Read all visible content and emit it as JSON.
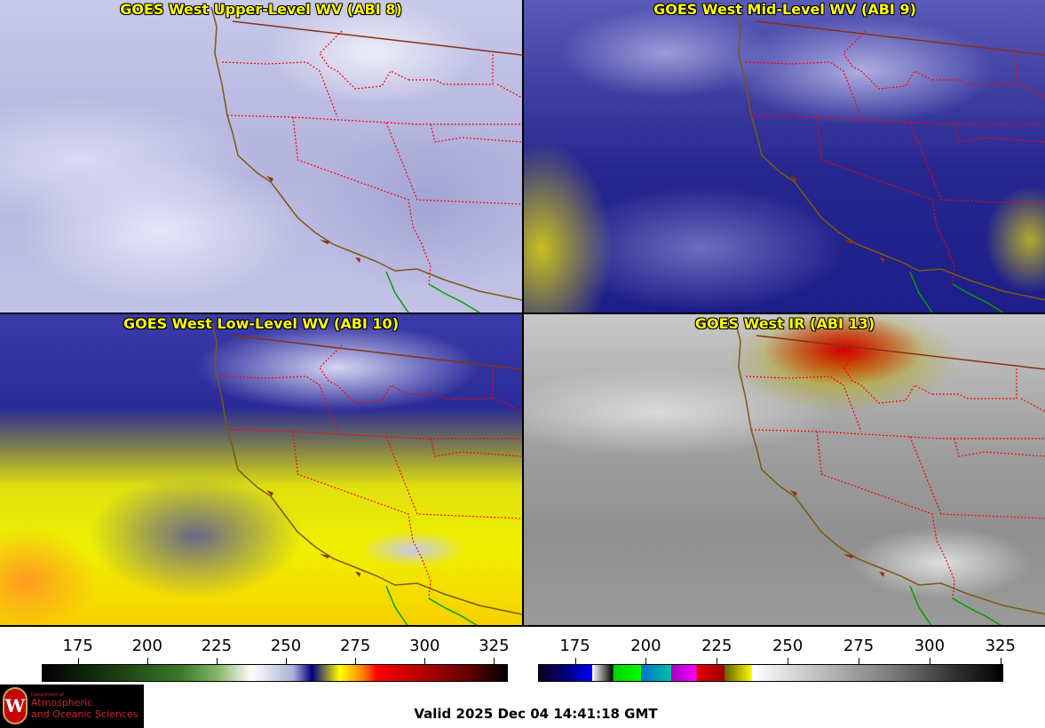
{
  "panels": [
    {
      "title": "GOES West Upper-Level WV (ABI 8)"
    },
    {
      "title": "GOES West Mid-Level WV (ABI 9)"
    },
    {
      "title": "GOES West Low-Level WV (ABI 10)"
    },
    {
      "title": "GOES West IR (ABI 13)"
    }
  ],
  "colorbars": [
    {
      "name": "water-vapor-colorbar",
      "range": [
        162,
        330
      ],
      "ticks": [
        "175",
        "200",
        "225",
        "250",
        "275",
        "300",
        "325"
      ]
    },
    {
      "name": "infrared-colorbar",
      "range": [
        162,
        326
      ],
      "ticks": [
        "175",
        "200",
        "225",
        "250",
        "275",
        "300",
        "325"
      ]
    }
  ],
  "logo": {
    "line1": "Department of",
    "line2": "Atmospheric",
    "line3": "and Oceanic Sciences",
    "seal_letter": "W"
  },
  "valid_time": "Valid 2025 Dec 04 14:41:18 GMT",
  "colors": {
    "title": "#ffff00",
    "coastline": "#7a5a10",
    "state_border": "#ff0000",
    "mexico_border": "#00a000"
  }
}
